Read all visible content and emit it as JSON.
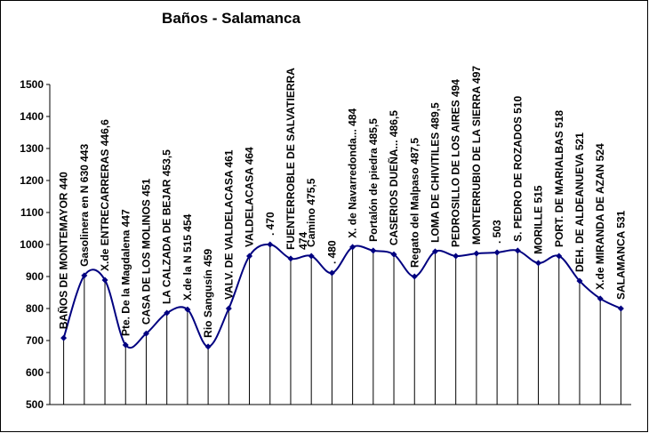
{
  "chart_data": {
    "type": "line",
    "title": "Baños - Salamanca",
    "categories": [
      "BAÑOS DE MONTEMAYOR 440",
      "Gasolinera en N 630 443",
      "X.de ENTRECARRERAS 446,6",
      "Pte. De la Magdalena 447",
      "CASA DE LOS MOLINOS 451",
      "LA CALZADA DE BEJAR 453,5",
      "X.de la N 515 454",
      "Rio Sangusín 459",
      "VALV. DE VALDELACASA 461",
      "VALDELACASA 464",
      ". 470",
      "FUENTERROBLE DE SALVATIERRA\n474",
      "Camino 475,5",
      ". 480",
      "X. de Navarredonda... 484",
      "Portalón de piedra 485,5",
      "CASERIOS DUEÑA... 486,5",
      "Regato del Malpaso 487,5",
      "LOMA DE CHIVITILES 489,5",
      "PEDROSILLO DE LOS AIRES 494",
      "MONTERRUBIO DE LA SIERRA 497",
      ". 503",
      "S. PEDRO DE ROZADOS 510",
      "MORILLE 515",
      "PORT. DE MARIALBAS 518",
      "DEH. DE ALDEANUEVA 521",
      "X.de MIRANDA DE AZAN 524",
      "SALAMANCA 531"
    ],
    "values": [
      708,
      903,
      889,
      686,
      722,
      786,
      797,
      681,
      800,
      964,
      1000,
      956,
      964,
      911,
      992,
      981,
      969,
      900,
      978,
      964,
      972,
      975,
      981,
      942,
      964,
      886,
      831,
      800
    ],
    "color": "#000080",
    "ylim": [
      500,
      1500
    ],
    "yticks": [
      500,
      600,
      700,
      800,
      900,
      1000,
      1100,
      1200,
      1300,
      1400,
      1500
    ]
  }
}
